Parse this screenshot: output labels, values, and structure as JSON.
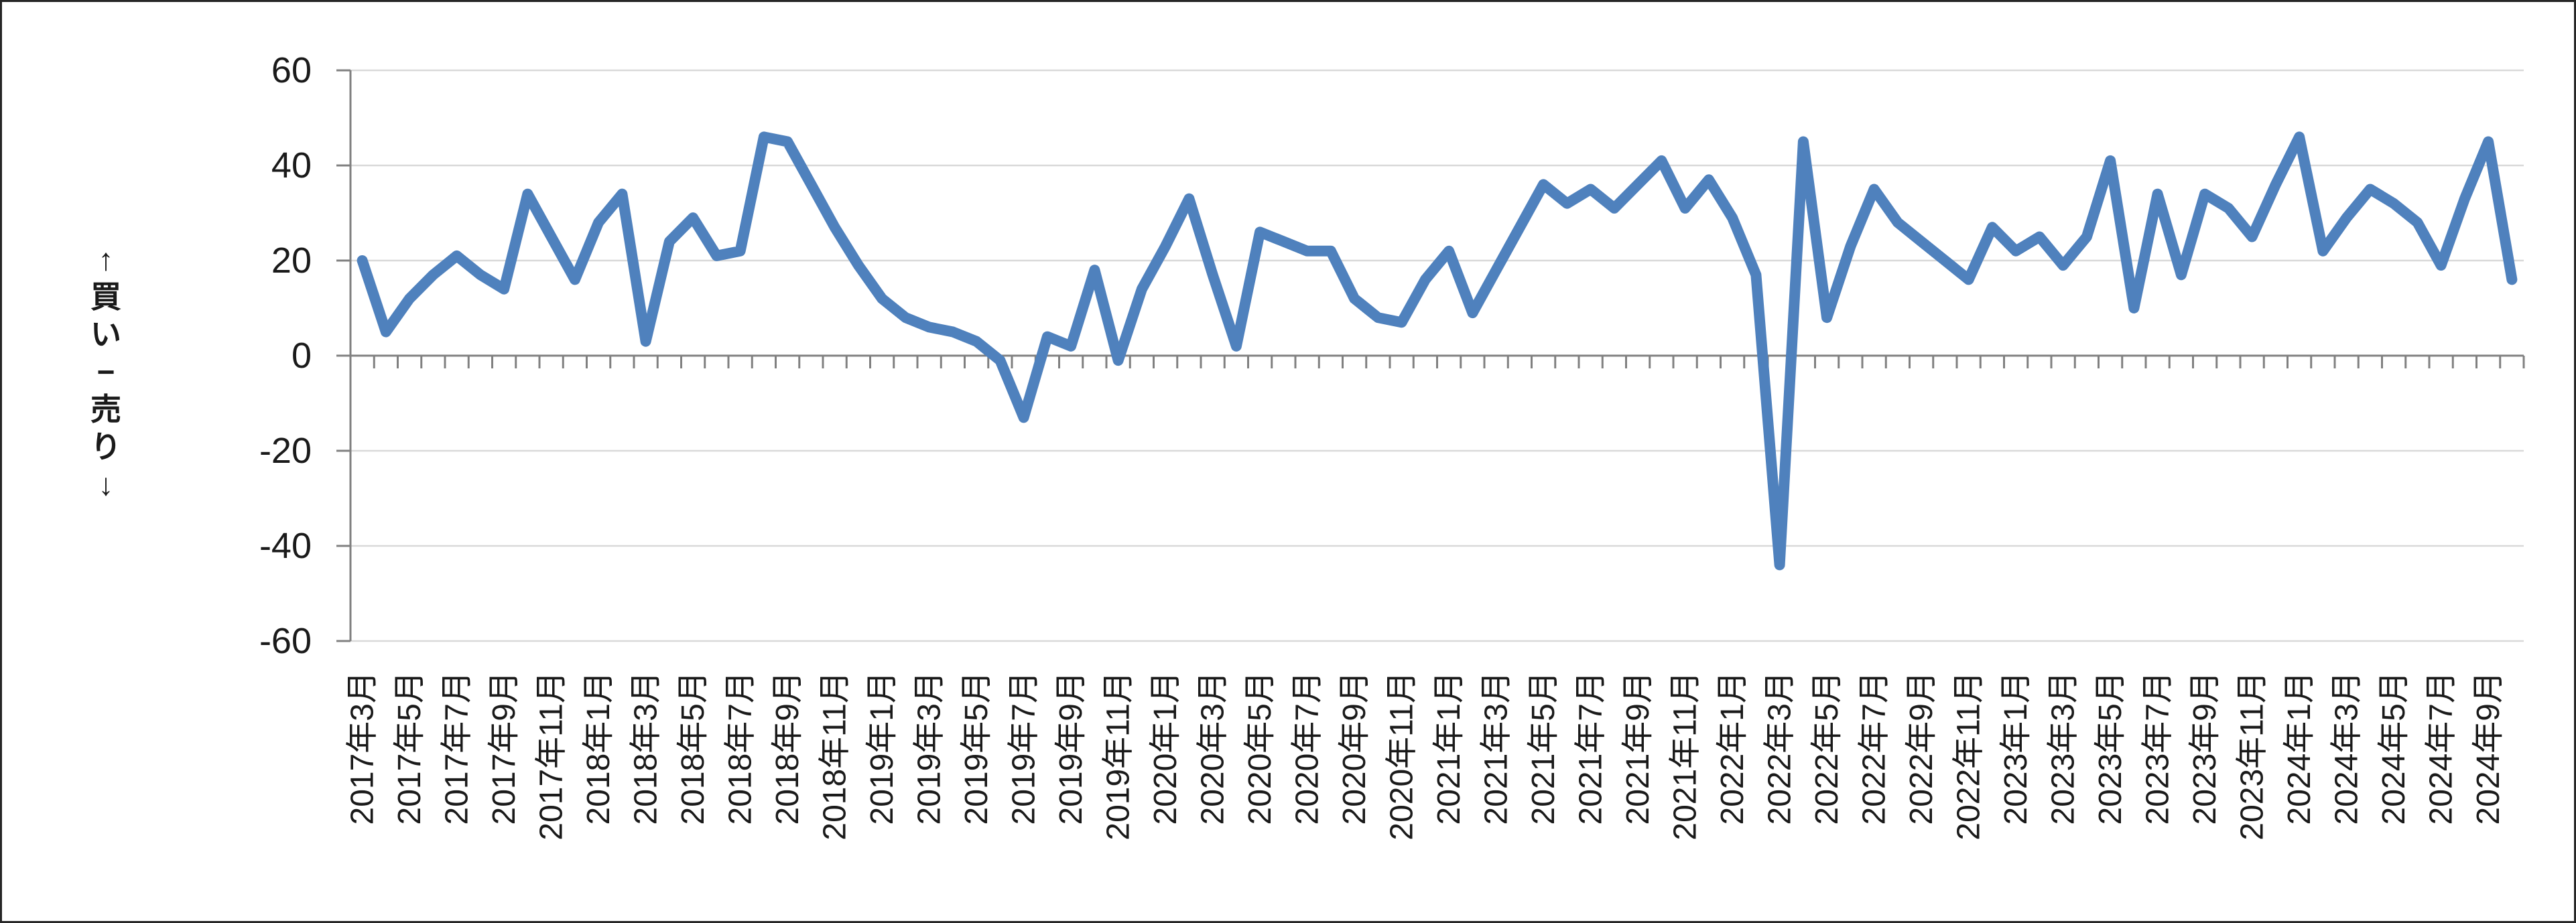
{
  "chart_data": {
    "type": "line",
    "title": "",
    "ylabel_vertical": "↑買い−売り↓",
    "y_axis": {
      "min": -60,
      "max": 60,
      "step": 20,
      "tick_labels": [
        "60",
        "40",
        "20",
        "0",
        "-20",
        "-40",
        "-60"
      ],
      "grid": true
    },
    "x_axis": {
      "first_period": "2017年3月",
      "last_period": "2024年10月",
      "labels_shown_every_n_categories": 2,
      "tick_labels": [
        "2017年3月",
        "2017年5月",
        "2017年7月",
        "2017年9月",
        "2017年11月",
        "2018年1月",
        "2018年3月",
        "2018年5月",
        "2018年7月",
        "2018年9月",
        "2018年11月",
        "2019年1月",
        "2019年3月",
        "2019年5月",
        "2019年7月",
        "2019年9月",
        "2019年11月",
        "2020年1月",
        "2020年3月",
        "2020年5月",
        "2020年7月",
        "2020年9月",
        "2020年11月",
        "2021年1月",
        "2021年3月",
        "2021年5月",
        "2021年7月",
        "2021年9月",
        "2021年11月",
        "2022年1月",
        "2022年3月",
        "2022年5月",
        "2022年7月",
        "2022年9月",
        "2022年11月",
        "2023年1月",
        "2023年3月",
        "2023年5月",
        "2023年7月",
        "2023年9月",
        "2023年11月",
        "2024年1月",
        "2024年3月",
        "2024年5月",
        "2024年7月",
        "2024年9月"
      ]
    },
    "series": [
      {
        "color": "#4F81BD",
        "values": [
          20,
          5,
          12,
          17,
          21,
          17,
          14,
          34,
          25,
          16,
          28,
          34,
          3,
          24,
          29,
          21,
          22,
          46,
          45,
          36,
          27,
          19,
          12,
          8,
          6,
          5,
          3,
          -1,
          -13,
          4,
          2,
          18,
          -1,
          14,
          23,
          33,
          17,
          2,
          26,
          24,
          22,
          22,
          12,
          8,
          7,
          16,
          22,
          9,
          18,
          27,
          36,
          32,
          35,
          31,
          36,
          41,
          31,
          37,
          29,
          17,
          -44,
          45,
          8,
          23,
          35,
          28,
          24,
          20,
          16,
          27,
          22,
          25,
          19,
          25,
          41,
          10,
          34,
          17,
          34,
          31,
          25,
          36,
          46,
          22,
          29,
          35,
          32,
          28,
          19,
          33,
          45,
          16
        ]
      }
    ],
    "colors": {
      "line": "#4F81BD",
      "gridline": "#D9D9D9",
      "axis": "#808080",
      "text": "#1a1a1a",
      "border": "#262626",
      "background": "#ffffff"
    }
  }
}
